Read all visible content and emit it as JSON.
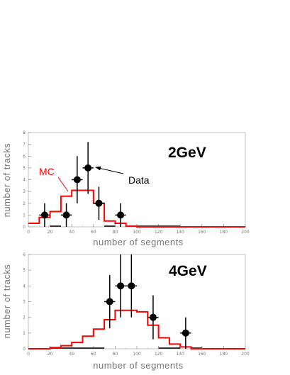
{
  "chart_data": [
    {
      "type": "line",
      "energy_label": "2GeV",
      "xlabel": "number of segments",
      "ylabel": "number of tracks",
      "xlim": [
        0,
        200
      ],
      "ylim": [
        0,
        8
      ],
      "xticks": [
        0,
        20,
        40,
        60,
        80,
        100,
        120,
        140,
        160,
        180,
        200
      ],
      "yticks": [
        0,
        1,
        2,
        3,
        4,
        5,
        6,
        7,
        8
      ],
      "mc_histogram": {
        "name": "MC",
        "color": "#ff0000",
        "bin_edges": [
          0,
          10,
          20,
          30,
          40,
          50,
          60,
          70,
          80,
          90,
          100,
          200
        ],
        "values": [
          0.3,
          0.8,
          1.3,
          2.6,
          3.1,
          3.1,
          2.0,
          0.5,
          0.3,
          0.05,
          0.0
        ]
      },
      "data_points": {
        "name": "Data",
        "x": [
          15,
          35,
          45,
          55,
          65,
          85
        ],
        "y": [
          1,
          1,
          4,
          5,
          2,
          1
        ],
        "err": [
          1,
          1,
          2,
          2.2,
          1.4,
          1
        ]
      },
      "zero_bins_x": [
        25,
        75,
        95,
        105,
        115,
        125,
        135
      ],
      "annotations": {
        "mc": "MC",
        "data": "Data"
      }
    },
    {
      "type": "line",
      "energy_label": "4GeV",
      "xlabel": "number of segments",
      "ylabel": "number of tracks",
      "xlim": [
        0,
        200
      ],
      "ylim": [
        0,
        6
      ],
      "xticks": [
        0,
        20,
        40,
        60,
        80,
        100,
        120,
        140,
        160,
        180,
        200
      ],
      "yticks": [
        0,
        1,
        2,
        3,
        4,
        5,
        6
      ],
      "mc_histogram": {
        "name": "MC",
        "color": "#ff0000",
        "bin_edges": [
          0,
          20,
          30,
          40,
          50,
          60,
          70,
          80,
          90,
          100,
          110,
          120,
          130,
          140,
          150,
          200
        ],
        "values": [
          0.0,
          0.08,
          0.2,
          0.4,
          0.8,
          1.25,
          1.85,
          2.45,
          2.45,
          2.35,
          1.5,
          0.7,
          0.3,
          0.12,
          0.0
        ]
      },
      "data_points": {
        "name": "Data",
        "x": [
          75,
          85,
          95,
          115,
          145
        ],
        "y": [
          3,
          4,
          4,
          2,
          1
        ],
        "err": [
          1.7,
          2,
          2,
          1.4,
          1
        ]
      },
      "zero_bins_x": [
        25,
        35,
        45,
        55,
        65,
        125,
        135,
        155
      ],
      "annotations": {}
    }
  ]
}
